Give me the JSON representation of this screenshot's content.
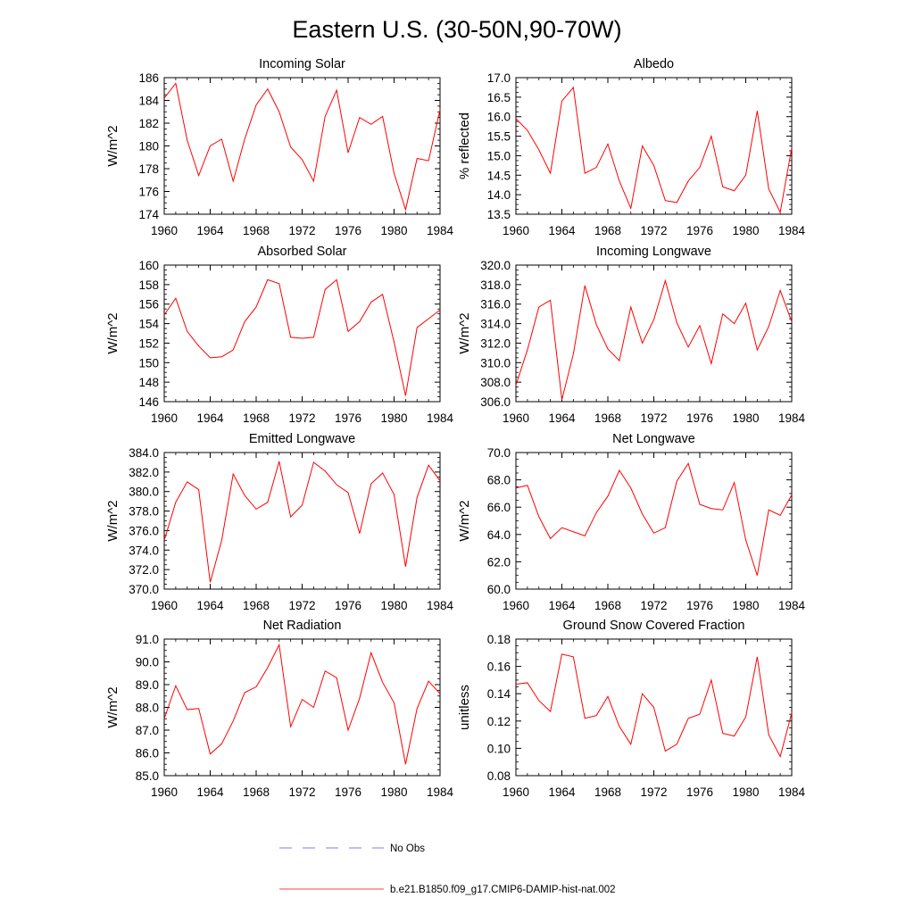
{
  "page": {
    "title": "Eastern U.S. (30-50N,90-70W)"
  },
  "legend": [
    {
      "label": "No Obs",
      "color": "#5050ff",
      "dash": true
    },
    {
      "label": "b.e21.B1850.f09_g17.CMIP6-DAMIP-hist-nat.002",
      "color": "#ff0000",
      "dash": false
    }
  ],
  "chart_data": [
    {
      "type": "line",
      "title": "Incoming Solar",
      "ylabel": "W/m^2",
      "xlim": [
        1960,
        1984
      ],
      "ylim": [
        174,
        186
      ],
      "xticks": [
        "1960",
        "1964",
        "1968",
        "1972",
        "1976",
        "1980",
        "1984"
      ],
      "yticks": [
        "174",
        "176",
        "178",
        "180",
        "182",
        "184",
        "186"
      ],
      "x": [
        1960,
        1961,
        1962,
        1963,
        1964,
        1965,
        1966,
        1967,
        1968,
        1969,
        1970,
        1971,
        1972,
        1973,
        1974,
        1975,
        1976,
        1977,
        1978,
        1979,
        1980,
        1981,
        1982,
        1983,
        1984
      ],
      "series": [
        {
          "name": "b.e21.B1850.f09_g17.CMIP6-DAMIP-hist-nat.002",
          "color": "#ff0000",
          "values": [
            184.2,
            185.5,
            180.5,
            177.4,
            180.0,
            180.6,
            176.9,
            180.6,
            183.6,
            185.0,
            183.0,
            179.9,
            178.8,
            176.9,
            182.6,
            184.9,
            179.4,
            182.5,
            181.9,
            182.6,
            177.6,
            174.4,
            178.9,
            178.7,
            183.2
          ]
        }
      ]
    },
    {
      "type": "line",
      "title": "Albedo",
      "ylabel": "% reflected",
      "xlim": [
        1960,
        1984
      ],
      "ylim": [
        13.5,
        17.0
      ],
      "xticks": [
        "1960",
        "1964",
        "1968",
        "1972",
        "1976",
        "1980",
        "1984"
      ],
      "yticks": [
        "13.5",
        "14.0",
        "14.5",
        "15.0",
        "15.5",
        "16.0",
        "16.5",
        "17.0"
      ],
      "x": [
        1960,
        1961,
        1962,
        1963,
        1964,
        1965,
        1966,
        1967,
        1968,
        1969,
        1970,
        1971,
        1972,
        1973,
        1974,
        1975,
        1976,
        1977,
        1978,
        1979,
        1980,
        1981,
        1982,
        1983,
        1984
      ],
      "series": [
        {
          "name": "b.e21.B1850.f09_g17.CMIP6-DAMIP-hist-nat.002",
          "color": "#ff0000",
          "values": [
            15.95,
            15.65,
            15.15,
            14.55,
            16.4,
            16.75,
            14.55,
            14.7,
            15.3,
            14.35,
            13.65,
            15.25,
            14.75,
            13.85,
            13.8,
            14.35,
            14.7,
            15.5,
            14.2,
            14.1,
            14.5,
            16.15,
            14.15,
            13.55,
            15.2
          ]
        }
      ]
    },
    {
      "type": "line",
      "title": "Absorbed Solar",
      "ylabel": "W/m^2",
      "xlim": [
        1960,
        1984
      ],
      "ylim": [
        146,
        160
      ],
      "xticks": [
        "1960",
        "1964",
        "1968",
        "1972",
        "1976",
        "1980",
        "1984"
      ],
      "yticks": [
        "146",
        "148",
        "150",
        "152",
        "154",
        "156",
        "158",
        "160"
      ],
      "x": [
        1960,
        1961,
        1962,
        1963,
        1964,
        1965,
        1966,
        1967,
        1968,
        1969,
        1970,
        1971,
        1972,
        1973,
        1974,
        1975,
        1976,
        1977,
        1978,
        1979,
        1980,
        1981,
        1982,
        1983,
        1984
      ],
      "series": [
        {
          "name": "b.e21.B1850.f09_g17.CMIP6-DAMIP-hist-nat.002",
          "color": "#ff0000",
          "values": [
            154.9,
            156.6,
            153.2,
            151.7,
            150.5,
            150.6,
            151.3,
            154.2,
            155.7,
            158.5,
            158.1,
            152.6,
            152.5,
            152.6,
            157.5,
            158.5,
            153.2,
            154.2,
            156.2,
            157.0,
            152.1,
            146.6,
            153.6,
            154.5,
            155.4
          ]
        }
      ]
    },
    {
      "type": "line",
      "title": "Incoming Longwave",
      "ylabel": "W/m^2",
      "xlim": [
        1960,
        1984
      ],
      "ylim": [
        306.0,
        320.0
      ],
      "xticks": [
        "1960",
        "1964",
        "1968",
        "1972",
        "1976",
        "1980",
        "1984"
      ],
      "yticks": [
        "306.0",
        "308.0",
        "310.0",
        "312.0",
        "314.0",
        "316.0",
        "318.0",
        "320.0"
      ],
      "x": [
        1960,
        1961,
        1962,
        1963,
        1964,
        1965,
        1966,
        1967,
        1968,
        1969,
        1970,
        1971,
        1972,
        1973,
        1974,
        1975,
        1976,
        1977,
        1978,
        1979,
        1980,
        1981,
        1982,
        1983,
        1984
      ],
      "series": [
        {
          "name": "b.e21.B1850.f09_g17.CMIP6-DAMIP-hist-nat.002",
          "color": "#ff0000",
          "values": [
            307.7,
            311.3,
            315.7,
            316.4,
            306.2,
            310.9,
            317.9,
            313.9,
            311.4,
            310.2,
            315.7,
            312.0,
            314.4,
            318.4,
            314.1,
            311.6,
            313.8,
            309.9,
            315.0,
            314.0,
            316.1,
            311.3,
            313.7,
            317.4,
            314.2
          ]
        }
      ]
    },
    {
      "type": "line",
      "title": "Emitted Longwave",
      "ylabel": "W/m^2",
      "xlim": [
        1960,
        1984
      ],
      "ylim": [
        370.0,
        384.0
      ],
      "xticks": [
        "1960",
        "1964",
        "1968",
        "1972",
        "1976",
        "1980",
        "1984"
      ],
      "yticks": [
        "370.0",
        "372.0",
        "374.0",
        "376.0",
        "378.0",
        "380.0",
        "382.0",
        "384.0"
      ],
      "x": [
        1960,
        1961,
        1962,
        1963,
        1964,
        1965,
        1966,
        1967,
        1968,
        1969,
        1970,
        1971,
        1972,
        1973,
        1974,
        1975,
        1976,
        1977,
        1978,
        1979,
        1980,
        1981,
        1982,
        1983,
        1984
      ],
      "series": [
        {
          "name": "b.e21.B1850.f09_g17.CMIP6-DAMIP-hist-nat.002",
          "color": "#ff0000",
          "values": [
            375.0,
            378.9,
            381.0,
            380.2,
            370.7,
            375.0,
            381.8,
            379.6,
            378.2,
            378.9,
            383.1,
            377.4,
            378.6,
            383.0,
            382.1,
            380.7,
            379.9,
            375.7,
            380.8,
            381.9,
            379.7,
            372.3,
            379.4,
            382.7,
            381.1
          ]
        }
      ]
    },
    {
      "type": "line",
      "title": "Net Longwave",
      "ylabel": "W/m^2",
      "xlim": [
        1960,
        1984
      ],
      "ylim": [
        60.0,
        70.0
      ],
      "xticks": [
        "1960",
        "1964",
        "1968",
        "1972",
        "1976",
        "1980",
        "1984"
      ],
      "yticks": [
        "60.0",
        "62.0",
        "64.0",
        "66.0",
        "68.0",
        "70.0"
      ],
      "x": [
        1960,
        1961,
        1962,
        1963,
        1964,
        1965,
        1966,
        1967,
        1968,
        1969,
        1970,
        1971,
        1972,
        1973,
        1974,
        1975,
        1976,
        1977,
        1978,
        1979,
        1980,
        1981,
        1982,
        1983,
        1984
      ],
      "series": [
        {
          "name": "b.e21.B1850.f09_g17.CMIP6-DAMIP-hist-nat.002",
          "color": "#ff0000",
          "values": [
            67.4,
            67.6,
            65.3,
            63.7,
            64.5,
            64.2,
            63.9,
            65.6,
            66.8,
            68.7,
            67.4,
            65.5,
            64.1,
            64.5,
            67.9,
            69.2,
            66.2,
            65.9,
            65.8,
            67.8,
            63.6,
            61.0,
            65.8,
            65.4,
            66.9
          ]
        }
      ]
    },
    {
      "type": "line",
      "title": "Net Radiation",
      "ylabel": "W/m^2",
      "xlim": [
        1960,
        1984
      ],
      "ylim": [
        85.0,
        91.0
      ],
      "xticks": [
        "1960",
        "1964",
        "1968",
        "1972",
        "1976",
        "1980",
        "1984"
      ],
      "yticks": [
        "85.0",
        "86.0",
        "87.0",
        "88.0",
        "89.0",
        "90.0",
        "91.0"
      ],
      "x": [
        1960,
        1961,
        1962,
        1963,
        1964,
        1965,
        1966,
        1967,
        1968,
        1969,
        1970,
        1971,
        1972,
        1973,
        1974,
        1975,
        1976,
        1977,
        1978,
        1979,
        1980,
        1981,
        1982,
        1983,
        1984
      ],
      "series": [
        {
          "name": "b.e21.B1850.f09_g17.CMIP6-DAMIP-hist-nat.002",
          "color": "#ff0000",
          "values": [
            87.5,
            88.95,
            87.9,
            87.95,
            85.95,
            86.4,
            87.4,
            88.65,
            88.9,
            89.75,
            90.75,
            87.15,
            88.35,
            88.0,
            89.6,
            89.3,
            87.0,
            88.4,
            90.4,
            89.1,
            88.2,
            85.5,
            87.95,
            89.15,
            88.6
          ]
        }
      ]
    },
    {
      "type": "line",
      "title": "Ground Snow Covered Fraction",
      "ylabel": "unitless",
      "xlim": [
        1960,
        1984
      ],
      "ylim": [
        0.08,
        0.18
      ],
      "xticks": [
        "1960",
        "1964",
        "1968",
        "1972",
        "1976",
        "1980",
        "1984"
      ],
      "yticks": [
        "0.08",
        "0.10",
        "0.12",
        "0.14",
        "0.16",
        "0.18"
      ],
      "x": [
        1960,
        1961,
        1962,
        1963,
        1964,
        1965,
        1966,
        1967,
        1968,
        1969,
        1970,
        1971,
        1972,
        1973,
        1974,
        1975,
        1976,
        1977,
        1978,
        1979,
        1980,
        1981,
        1982,
        1983,
        1984
      ],
      "series": [
        {
          "name": "b.e21.B1850.f09_g17.CMIP6-DAMIP-hist-nat.002",
          "color": "#ff0000",
          "values": [
            0.147,
            0.148,
            0.135,
            0.127,
            0.169,
            0.167,
            0.122,
            0.124,
            0.138,
            0.116,
            0.103,
            0.14,
            0.13,
            0.098,
            0.103,
            0.122,
            0.125,
            0.15,
            0.111,
            0.109,
            0.123,
            0.167,
            0.11,
            0.094,
            0.126
          ]
        }
      ]
    }
  ]
}
